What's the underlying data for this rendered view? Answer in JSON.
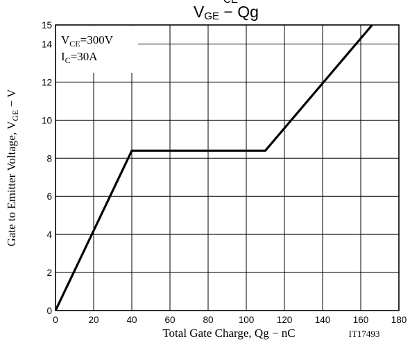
{
  "chart_data": {
    "type": "line",
    "title": {
      "main": "V",
      "main_sub": "GE",
      "rest": " − Qg",
      "upper_fragment": "CE"
    },
    "xlabel": "Total Gate Charge, Qg  −  nC",
    "ylabel": {
      "prefix": "Gate to Emitter Voltage, V",
      "sub": "GE",
      "suffix": "  −  V"
    },
    "xlim": [
      0,
      180
    ],
    "ylim": [
      0,
      15
    ],
    "xticks": [
      0,
      20,
      40,
      60,
      80,
      100,
      120,
      140,
      160,
      180
    ],
    "yticks": [
      0,
      2,
      4,
      6,
      8,
      10,
      12,
      14,
      15
    ],
    "grid": true,
    "series": [
      {
        "x": [
          0,
          40,
          110,
          166
        ],
        "y": [
          0,
          8.4,
          8.4,
          15
        ]
      }
    ],
    "annotations": {
      "line1": {
        "prefix": "V",
        "sub": "CE",
        "suffix": "=300V"
      },
      "line2": {
        "prefix": "I",
        "sub": "C",
        "suffix": "=30A"
      }
    },
    "figure_id": "IT17493"
  }
}
